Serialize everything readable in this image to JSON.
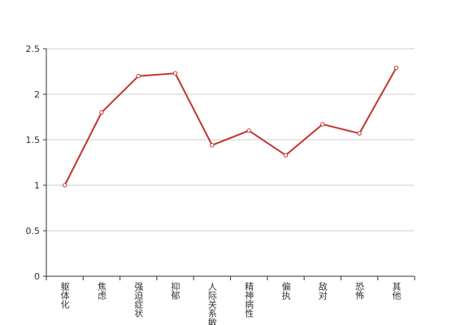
{
  "chart_data": {
    "type": "line",
    "categories": [
      "躯体化",
      "焦虑",
      "强迫症状",
      "抑郁",
      "人际关系敏感",
      "精神病性",
      "偏执",
      "敌对",
      "恐怖",
      "其他"
    ],
    "series": [
      {
        "color": "#c23531",
        "values": [
          1.0,
          1.8,
          2.2,
          2.23,
          1.44,
          1.6,
          1.33,
          1.67,
          1.57,
          2.29
        ]
      }
    ],
    "ylim": [
      0,
      2.5
    ],
    "yticks": [
      0,
      0.5,
      1,
      1.5,
      2,
      2.5
    ],
    "grid": true
  }
}
